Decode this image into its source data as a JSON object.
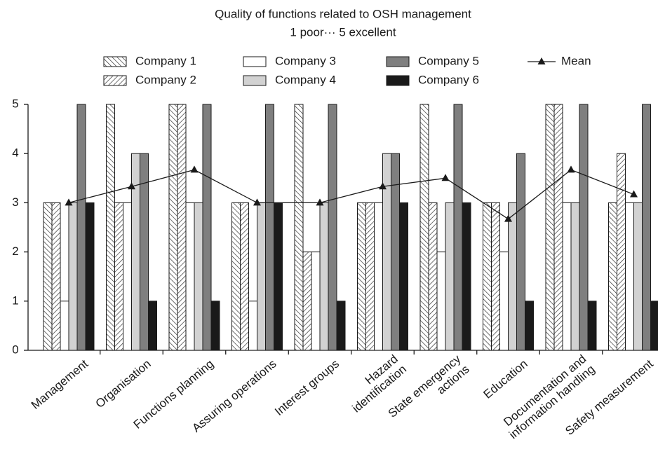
{
  "chart_data": {
    "type": "bar",
    "title": "Quality of functions related to OSH management",
    "subtitle": "1 poor··· 5 excellent",
    "categories": [
      [
        "Management"
      ],
      [
        "Organisation"
      ],
      [
        "Functions planning"
      ],
      [
        "Assuring operations"
      ],
      [
        "Interest groups"
      ],
      [
        "Hazard",
        "identification"
      ],
      [
        "State emergency",
        "actions"
      ],
      [
        "Education"
      ],
      [
        "Documentation and",
        "information handling"
      ],
      [
        "Safety measurement"
      ]
    ],
    "series": [
      {
        "name": "Company 1",
        "color": "#ffffff",
        "pattern": "hatch-back",
        "values": [
          3,
          5,
          5,
          3,
          5,
          3,
          5,
          3,
          5,
          3
        ]
      },
      {
        "name": "Company 2",
        "color": "#ffffff",
        "pattern": "hatch-forward",
        "values": [
          3,
          3,
          5,
          3,
          2,
          3,
          3,
          3,
          5,
          4
        ]
      },
      {
        "name": "Company 3",
        "color": "#ffffff",
        "values": [
          1,
          3,
          3,
          1,
          2,
          3,
          2,
          2,
          3,
          3
        ]
      },
      {
        "name": "Company 4",
        "color": "#d2d2d2",
        "values": [
          3,
          4,
          3,
          3,
          3,
          4,
          3,
          3,
          3,
          3
        ]
      },
      {
        "name": "Company 5",
        "color": "#7f7f7f",
        "values": [
          5,
          4,
          5,
          5,
          5,
          4,
          5,
          4,
          5,
          5
        ]
      },
      {
        "name": "Company 6",
        "color": "#1a1a1a",
        "values": [
          3,
          1,
          1,
          3,
          1,
          3,
          3,
          1,
          1,
          1
        ]
      },
      {
        "name": "Mean",
        "type": "line",
        "color": "#1a1a1a",
        "values": [
          3.0,
          3.33,
          3.67,
          3.0,
          3.0,
          3.33,
          3.5,
          2.67,
          3.67,
          3.17
        ]
      }
    ],
    "ylim": [
      0,
      5
    ],
    "yticks": [
      0,
      1,
      2,
      3,
      4,
      5
    ],
    "grid": false,
    "legend": "top"
  }
}
